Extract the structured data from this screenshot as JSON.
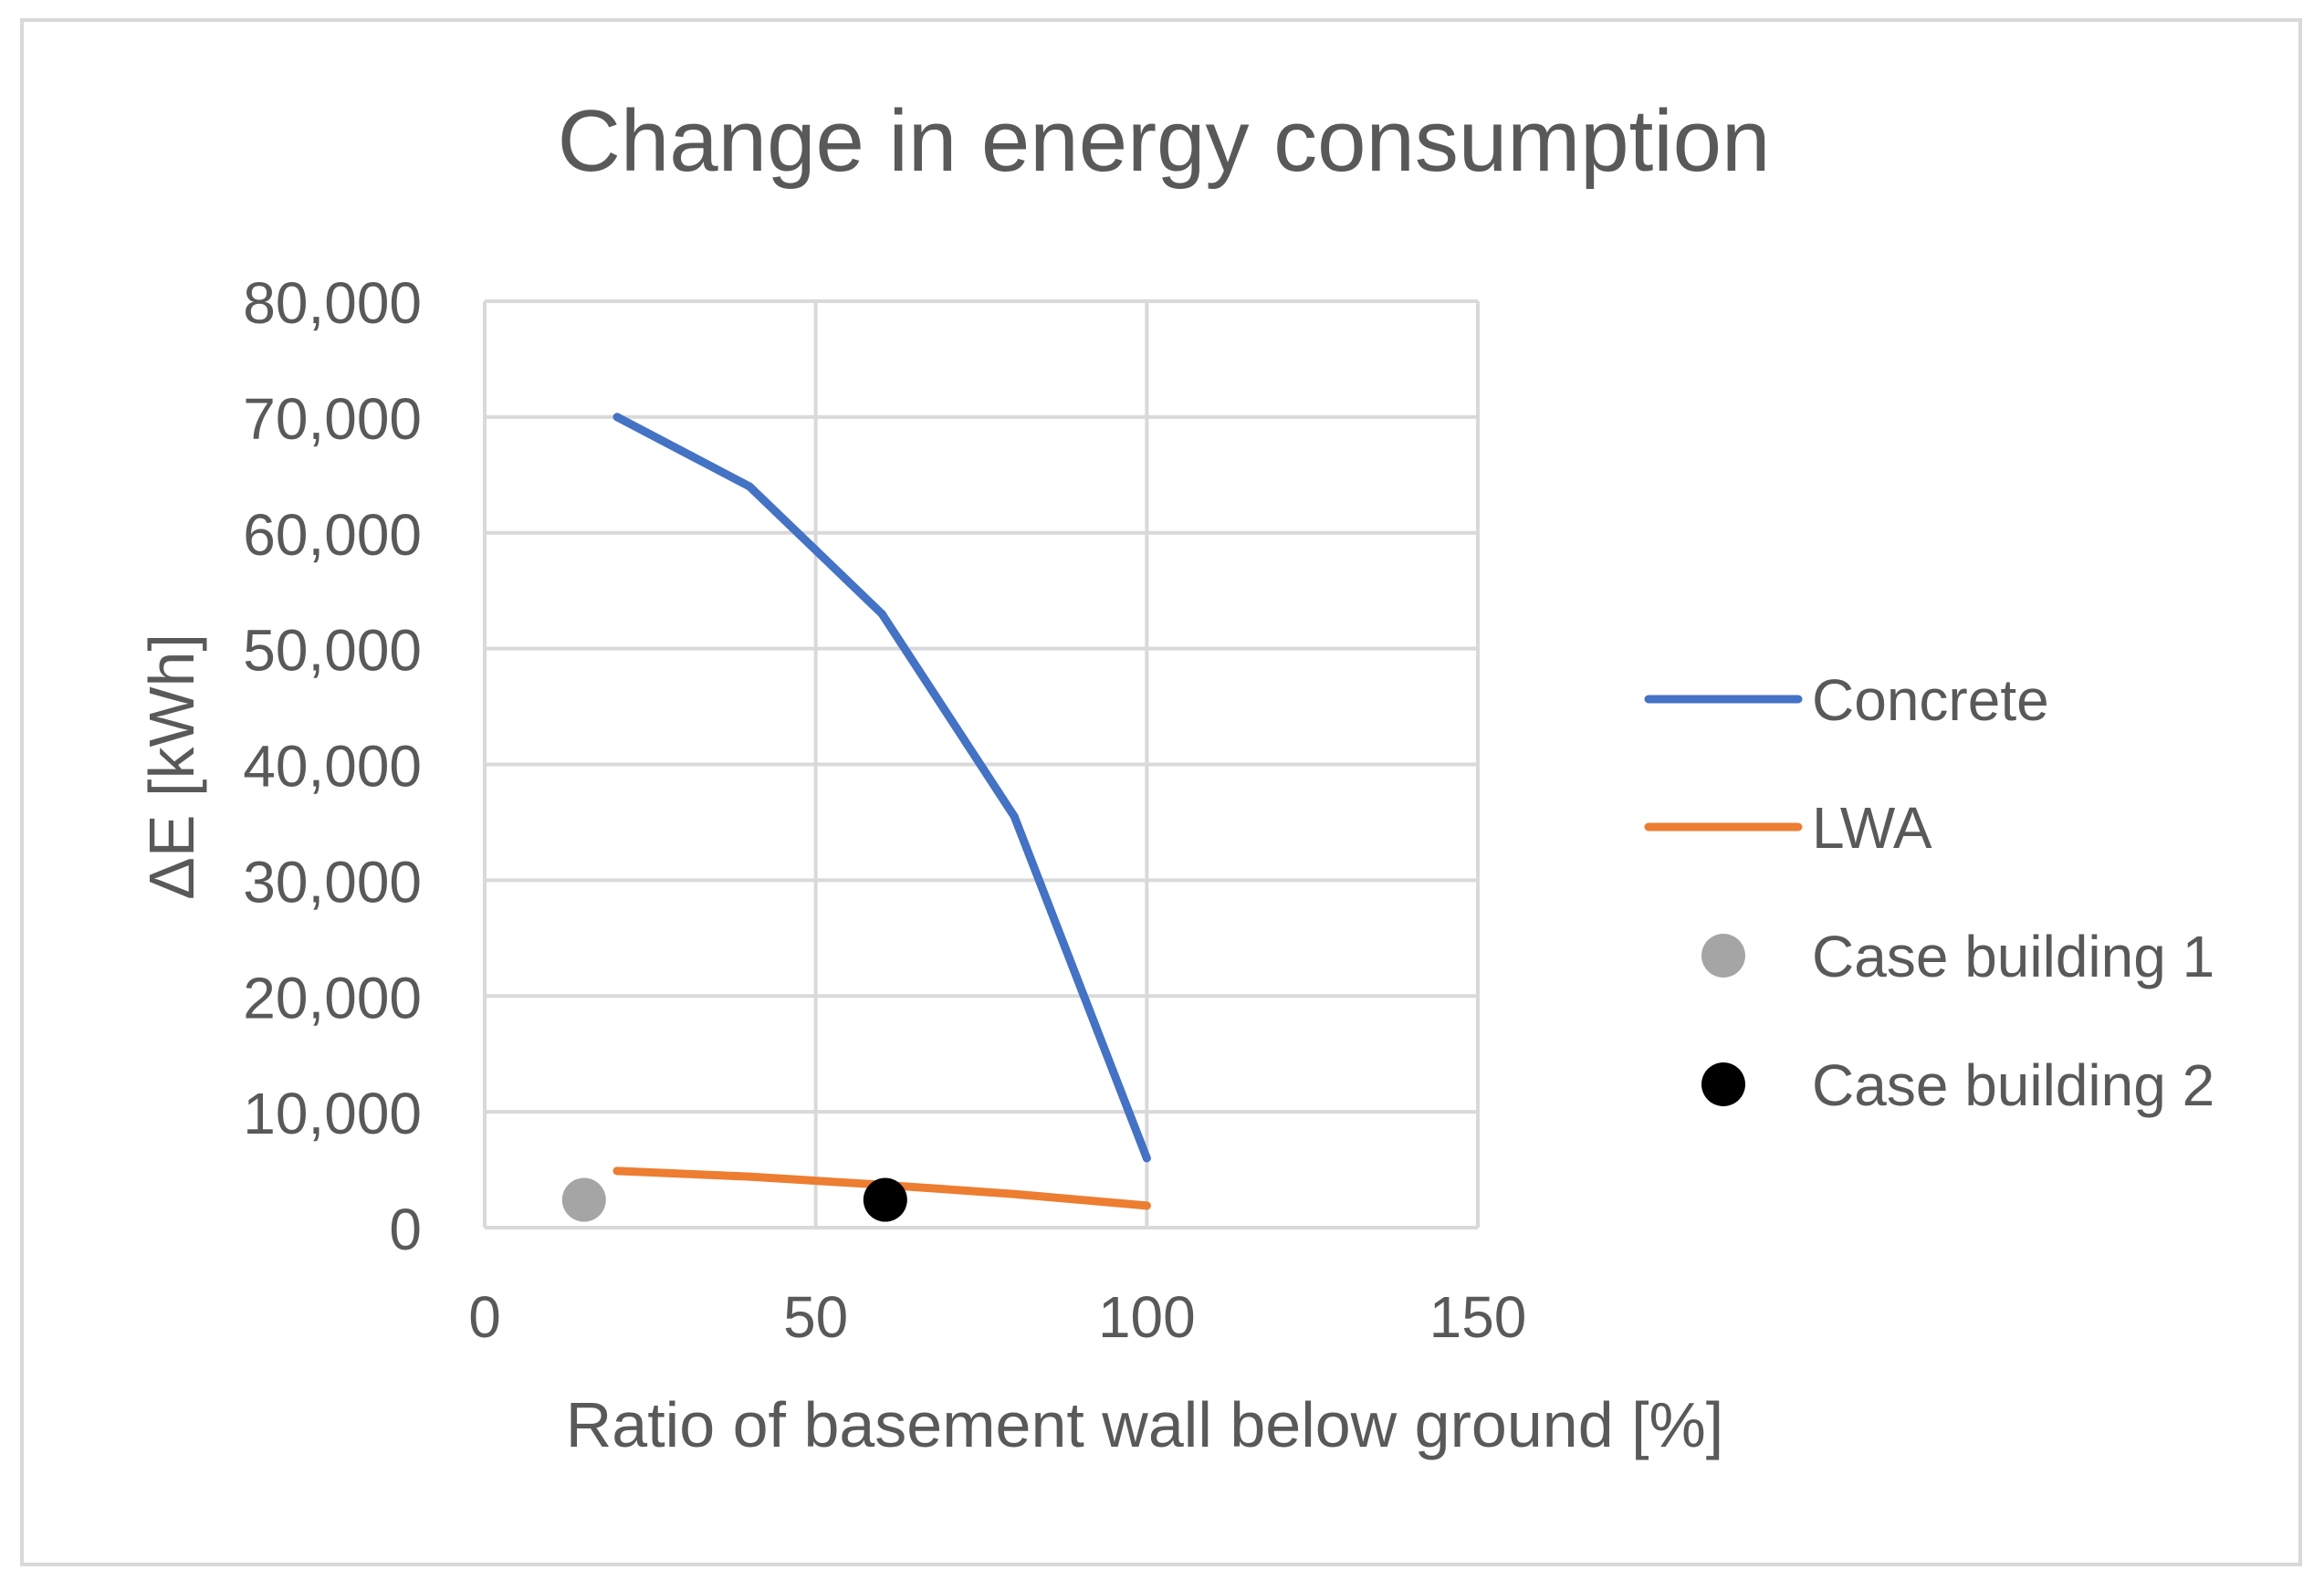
{
  "chart_data": {
    "type": "scatter",
    "title": "Change in energy consumption",
    "xlabel": "Ratio of basement wall below ground [%]",
    "ylabel": "ΔE [kWh]",
    "xlim": [
      0,
      150
    ],
    "ylim": [
      0,
      80000
    ],
    "x_ticks": [
      0,
      50,
      100,
      150
    ],
    "y_ticks": [
      0,
      10000,
      20000,
      30000,
      40000,
      50000,
      60000,
      70000,
      80000
    ],
    "x_tick_labels": [
      "0",
      "50",
      "100",
      "150"
    ],
    "y_tick_labels": [
      "0",
      "10,000",
      "20,000",
      "30,000",
      "40,000",
      "50,000",
      "60,000",
      "70,000",
      "80,000"
    ],
    "grid": true,
    "legend_position": "right",
    "series": [
      {
        "name": "Concrete",
        "kind": "line",
        "color": "#4472c4",
        "x": [
          20,
          40,
          60,
          80,
          100
        ],
        "y": [
          70000,
          64000,
          53000,
          35500,
          6000
        ]
      },
      {
        "name": "LWA",
        "kind": "line",
        "color": "#ed7d31",
        "x": [
          20,
          40,
          60,
          80,
          100
        ],
        "y": [
          4900,
          4400,
          3700,
          2900,
          1900
        ]
      },
      {
        "name": "Case building 1",
        "kind": "marker",
        "color": "#a5a5a5",
        "x": [
          15
        ],
        "y": [
          2400
        ]
      },
      {
        "name": "Case building 2",
        "kind": "marker",
        "color": "#000000",
        "x": [
          60.5
        ],
        "y": [
          2400
        ]
      }
    ]
  }
}
